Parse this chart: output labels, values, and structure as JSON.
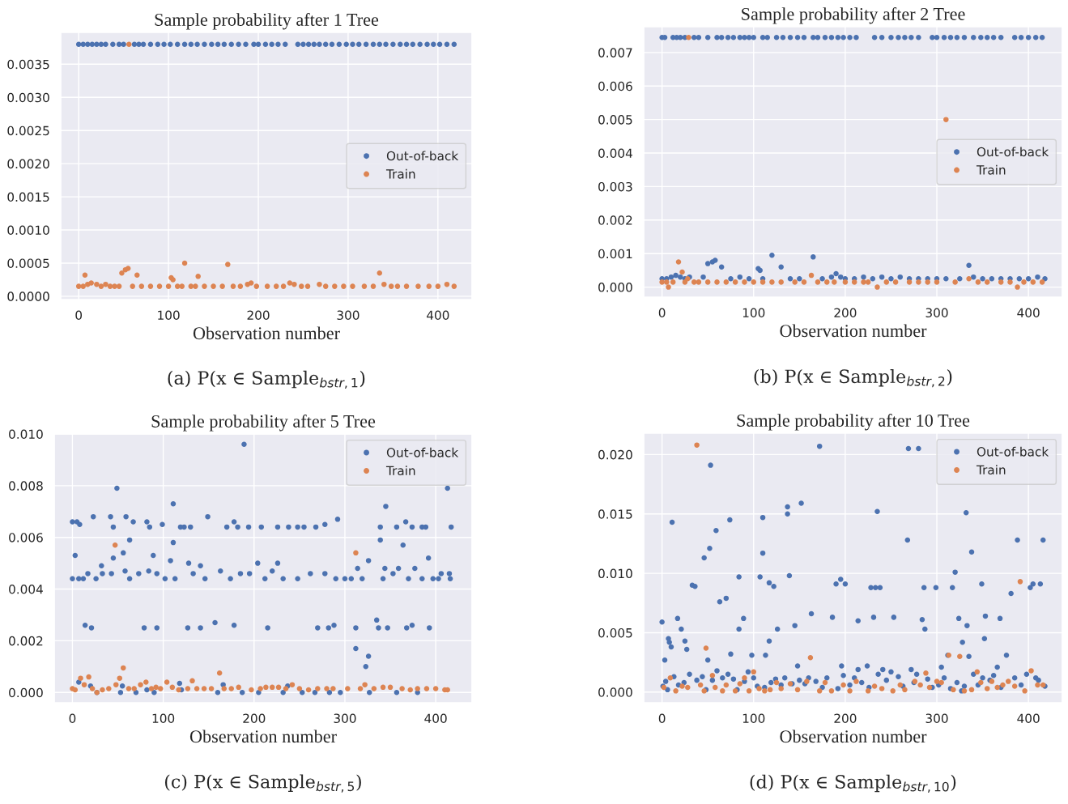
{
  "chart_data": [
    {
      "type": "scatter",
      "title": "Sample probability after 1 Tree",
      "xlabel": "Observation number",
      "annotations": [
        "(a) P(x ∈ Sample$_{bstr,1}$)"
      ],
      "xlim": [
        -20,
        438
      ],
      "ylim": [
        -5e-05,
        0.00398
      ],
      "xticks": [
        0,
        100,
        200,
        300,
        400
      ],
      "yticks": [
        {
          "value": 0,
          "label": "0.0000"
        },
        {
          "value": 0.0005,
          "label": "0.0005"
        },
        {
          "value": 0.001,
          "label": "0.0010"
        },
        {
          "value": 0.0015,
          "label": "0.0015"
        },
        {
          "value": 0.002,
          "label": "0.0020"
        },
        {
          "value": 0.0025,
          "label": "0.0025"
        },
        {
          "value": 0.003,
          "label": "0.0030"
        },
        {
          "value": 0.0035,
          "label": "0.0035"
        }
      ],
      "grid": true,
      "legend": "center right",
      "marker": "circle",
      "series": [
        {
          "name": "Out-of-back",
          "color": "#4c72b0",
          "x": [
            0,
            5,
            10,
            15,
            20,
            25,
            30,
            38,
            45,
            50,
            62,
            67,
            72,
            80,
            88,
            95,
            102,
            110,
            118,
            125,
            132,
            140,
            148,
            155,
            162,
            170,
            178,
            186,
            195,
            200,
            208,
            215,
            222,
            230,
            244,
            250,
            256,
            262,
            268,
            275,
            282,
            290,
            298,
            305,
            312,
            320,
            328,
            335,
            342,
            350,
            358,
            365,
            372,
            380,
            388,
            395,
            402,
            410,
            418
          ],
          "values": [
            0.0038,
            0.0038,
            0.0038,
            0.0038,
            0.0038,
            0.0038,
            0.0038,
            0.0038,
            0.0038,
            0.0038,
            0.0038,
            0.0038,
            0.0038,
            0.0038,
            0.0038,
            0.0038,
            0.0038,
            0.0038,
            0.0038,
            0.0038,
            0.0038,
            0.0038,
            0.0038,
            0.0038,
            0.0038,
            0.0038,
            0.0038,
            0.0038,
            0.0038,
            0.0038,
            0.0038,
            0.0038,
            0.0038,
            0.0038,
            0.0038,
            0.0038,
            0.0038,
            0.0038,
            0.0038,
            0.0038,
            0.0038,
            0.0038,
            0.0038,
            0.0038,
            0.0038,
            0.0038,
            0.0038,
            0.0038,
            0.0038,
            0.0038,
            0.0038,
            0.0038,
            0.0038,
            0.0038,
            0.0038,
            0.0038,
            0.0038,
            0.0038,
            0.0038
          ]
        },
        {
          "name": "Train",
          "color": "#dd8452",
          "x": [
            0,
            5,
            7,
            10,
            14,
            20,
            25,
            30,
            35,
            40,
            45,
            48,
            52,
            55,
            56,
            60,
            65,
            70,
            80,
            90,
            100,
            103,
            105,
            110,
            115,
            118,
            125,
            130,
            133,
            140,
            150,
            160,
            166,
            172,
            180,
            188,
            192,
            198,
            210,
            220,
            228,
            235,
            240,
            248,
            255,
            268,
            275,
            285,
            295,
            305,
            318,
            328,
            335,
            340,
            348,
            355,
            365,
            378,
            390,
            400,
            410,
            418
          ],
          "values": [
            0.00015,
            0.00015,
            0.00032,
            0.00018,
            0.0002,
            0.00018,
            0.00015,
            0.00018,
            0.00015,
            0.00015,
            0.00015,
            0.00035,
            0.0004,
            0.00042,
            0.0038,
            0.00015,
            0.00032,
            0.00015,
            0.00015,
            0.00015,
            0.00015,
            0.00028,
            0.00025,
            0.00015,
            0.00015,
            0.0005,
            0.00015,
            0.00015,
            0.0003,
            0.00015,
            0.00015,
            0.00015,
            0.00048,
            0.00015,
            0.00015,
            0.00018,
            0.0002,
            0.00015,
            0.00015,
            0.00015,
            0.00015,
            0.0002,
            0.00018,
            0.00015,
            0.00015,
            0.00018,
            0.00015,
            0.00015,
            0.00015,
            0.00015,
            0.00015,
            0.00015,
            0.00035,
            0.00018,
            0.00015,
            0.00015,
            0.00015,
            0.00015,
            0.00015,
            0.00015,
            0.00018,
            0.00015
          ]
        }
      ]
    },
    {
      "type": "scatter",
      "title": "Sample probability after 2 Tree",
      "xlabel": "Observation number",
      "annotations": [
        "(b) P(x ∈ Sample$_{bstr,2}$)"
      ],
      "xlim": [
        -20,
        437
      ],
      "ylim": [
        -0.0003,
        0.00777
      ],
      "xticks": [
        0,
        100,
        200,
        300,
        400
      ],
      "yticks": [
        {
          "value": 0,
          "label": "0.000"
        },
        {
          "value": 0.001,
          "label": "0.001"
        },
        {
          "value": 0.002,
          "label": "0.002"
        },
        {
          "value": 0.003,
          "label": "0.003"
        },
        {
          "value": 0.004,
          "label": "0.004"
        },
        {
          "value": 0.005,
          "label": "0.005"
        },
        {
          "value": 0.006,
          "label": "0.006"
        },
        {
          "value": 0.007,
          "label": "0.007"
        }
      ],
      "grid": true,
      "legend": "center right",
      "marker": "circle",
      "series": [
        {
          "name": "Out-of-back",
          "color": "#4c72b0",
          "x": [
            0,
            3,
            12,
            16,
            20,
            25,
            35,
            40,
            50,
            60,
            65,
            72,
            78,
            85,
            90,
            95,
            100,
            110,
            115,
            125,
            132,
            140,
            148,
            155,
            165,
            170,
            178,
            185,
            192,
            198,
            205,
            212,
            232,
            240,
            250,
            258,
            265,
            272,
            280,
            295,
            300,
            308,
            315,
            322,
            330,
            340,
            348,
            355,
            362,
            370,
            385,
            392,
            400,
            408,
            415,
            0,
            5,
            10,
            15,
            20,
            25,
            30,
            45,
            50,
            55,
            58,
            65,
            75,
            85,
            95,
            105,
            107,
            110,
            120,
            130,
            140,
            150,
            165,
            175,
            185,
            190,
            195,
            200,
            210,
            220,
            230,
            240,
            250,
            260,
            270,
            280,
            290,
            300,
            310,
            325,
            335,
            340,
            350,
            360,
            370,
            380,
            390,
            400,
            410,
            418
          ],
          "values": [
            0.00745,
            0.00745,
            0.00745,
            0.00745,
            0.00745,
            0.00745,
            0.00745,
            0.00745,
            0.00745,
            0.00745,
            0.00745,
            0.00745,
            0.00745,
            0.00745,
            0.00745,
            0.00745,
            0.00745,
            0.00745,
            0.00745,
            0.00745,
            0.00745,
            0.00745,
            0.00745,
            0.00745,
            0.00745,
            0.00745,
            0.00745,
            0.00745,
            0.00745,
            0.00745,
            0.00745,
            0.00745,
            0.00745,
            0.00745,
            0.00745,
            0.00745,
            0.00745,
            0.00745,
            0.00745,
            0.00745,
            0.00745,
            0.00745,
            0.00745,
            0.00745,
            0.00745,
            0.00745,
            0.00745,
            0.00745,
            0.00745,
            0.00745,
            0.00745,
            0.00745,
            0.00745,
            0.00745,
            0.00745,
            0.00025,
            0.00025,
            0.0003,
            0.00035,
            0.0003,
            0.00025,
            0.0003,
            0.0003,
            0.0007,
            0.00075,
            0.0008,
            0.0006,
            0.00025,
            0.0003,
            0.00025,
            0.00055,
            0.0005,
            0.00025,
            0.00095,
            0.0006,
            0.00025,
            0.00025,
            0.0009,
            0.00025,
            0.0003,
            0.0004,
            0.0003,
            0.00025,
            0.00025,
            0.0003,
            0.00025,
            0.0003,
            0.00025,
            0.0003,
            0.00025,
            0.00025,
            0.00025,
            0.00025,
            0.00025,
            0.00025,
            0.00065,
            0.0003,
            0.00025,
            0.00025,
            0.00025,
            0.00025,
            0.00025,
            0.00025,
            0.0003,
            0.00025
          ]
        },
        {
          "name": "Train",
          "color": "#dd8452",
          "x": [
            0,
            5,
            7,
            12,
            18,
            22,
            25,
            28,
            29,
            35,
            40,
            50,
            60,
            70,
            80,
            90,
            100,
            110,
            120,
            130,
            145,
            155,
            163,
            170,
            180,
            188,
            200,
            210,
            220,
            225,
            235,
            245,
            255,
            270,
            280,
            290,
            300,
            310,
            320,
            335,
            345,
            355,
            370,
            380,
            388,
            395,
            405,
            415
          ],
          "values": [
            0.00015,
            0.00015,
            0.0,
            0.00015,
            0.00075,
            0.00045,
            0.00015,
            0.00025,
            0.00745,
            0.00015,
            0.00015,
            0.00015,
            0.00015,
            0.00015,
            0.00015,
            0.00015,
            0.00015,
            0.00015,
            0.00015,
            0.00015,
            0.00015,
            0.00015,
            0.00035,
            0.00015,
            0.00015,
            0.00015,
            0.00015,
            0.00015,
            0.00015,
            0.00015,
            0.0,
            0.00015,
            0.00015,
            0.00015,
            0.00015,
            0.00015,
            0.00015,
            0.005,
            0.00015,
            0.00025,
            0.00015,
            0.00015,
            0.00015,
            0.00015,
            0.0,
            0.00015,
            0.00015,
            0.00015
          ]
        }
      ]
    },
    {
      "type": "scatter",
      "title": "Sample probability after 5 Tree",
      "xlabel": "Observation number",
      "annotations": [
        "(c) P(x ∈ Sample$_{bstr,5}$)"
      ],
      "xlim": [
        -20,
        440
      ],
      "ylim": [
        -0.0004,
        0.01
      ],
      "xticks": [
        0,
        100,
        200,
        300,
        400
      ],
      "yticks": [
        {
          "value": 0,
          "label": "0.000"
        },
        {
          "value": 0.002,
          "label": "0.002"
        },
        {
          "value": 0.004,
          "label": "0.004"
        },
        {
          "value": 0.006,
          "label": "0.006"
        },
        {
          "value": 0.008,
          "label": "0.008"
        },
        {
          "value": 0.01,
          "label": "0.010"
        }
      ],
      "grid": true,
      "legend": "upper right",
      "marker": "circle",
      "series": [
        {
          "name": "Out-of-back",
          "color": "#4c72b0",
          "x": [
            0,
            5,
            8,
            3,
            0,
            7,
            12,
            14,
            21,
            17,
            23,
            26,
            32,
            33,
            42,
            43,
            45,
            45,
            49,
            56,
            59,
            58,
            63,
            63,
            67,
            73,
            79,
            82,
            85,
            84,
            89,
            93,
            93,
            99,
            102,
            108,
            111,
            111,
            113,
            119,
            123,
            127,
            128,
            130,
            133,
            141,
            141,
            149,
            146,
            157,
            163,
            170,
            174,
            178,
            178,
            182,
            185,
            189,
            194,
            195,
            204,
            208,
            212,
            215,
            220,
            226,
            226,
            232,
            238,
            248,
            248,
            255,
            262,
            268,
            270,
            278,
            278,
            282,
            288,
            292,
            290,
            300,
            307,
            312,
            312,
            314,
            319,
            323,
            326,
            326,
            335,
            337,
            339,
            339,
            342,
            345,
            344,
            347,
            353,
            357,
            359,
            364,
            367,
            368,
            370,
            374,
            374,
            377,
            385,
            385,
            389,
            392,
            393,
            397,
            403,
            406,
            413,
            415,
            416,
            417,
            7,
            20,
            27,
            53,
            55,
            70,
            82,
            90,
            118,
            120,
            160,
            166,
            187,
            205,
            232,
            237,
            253,
            267,
            283,
            295,
            327,
            357,
            380
          ],
          "values": [
            0.0066,
            0.0066,
            0.0065,
            0.0053,
            0.0044,
            0.0044,
            0.0044,
            0.0026,
            0.0025,
            0.0046,
            0.0068,
            0.0044,
            0.0049,
            0.0046,
            0.0068,
            0.0046,
            0.0064,
            0.0052,
            0.0079,
            0.0054,
            0.0068,
            0.0047,
            0.0059,
            0.0044,
            0.0066,
            0.0046,
            0.0025,
            0.0066,
            0.0064,
            0.0047,
            0.0053,
            0.0025,
            0.0046,
            0.0065,
            0.0044,
            0.0051,
            0.0073,
            0.0058,
            0.0044,
            0.0064,
            0.0064,
            0.0025,
            0.005,
            0.0064,
            0.0046,
            0.0049,
            0.0025,
            0.0068,
            0.0044,
            0.0027,
            0.0047,
            0.0064,
            0.0044,
            0.0026,
            0.0066,
            0.0064,
            0.0046,
            0.0096,
            0.0064,
            0.0046,
            0.005,
            0.0064,
            0.0044,
            0.0025,
            0.0047,
            0.0064,
            0.005,
            0.0044,
            0.0064,
            0.0064,
            0.0044,
            0.0064,
            0.0046,
            0.0064,
            0.0025,
            0.0065,
            0.0046,
            0.0025,
            0.0026,
            0.0067,
            0.0044,
            0.0044,
            0.0044,
            0.0025,
            0.0017,
            0.0048,
            0.0044,
            0.001,
            0.0014,
            0.0051,
            0.0028,
            0.0025,
            0.0064,
            0.0059,
            0.0044,
            0.0072,
            0.0048,
            0.0025,
            0.0046,
            0.0064,
            0.0048,
            0.0057,
            0.0066,
            0.0025,
            0.0044,
            0.0064,
            0.0026,
            0.0048,
            0.0064,
            0.0044,
            0.0064,
            0.0052,
            0.0025,
            0.0044,
            0.0044,
            0.0046,
            0.0079,
            0.0046,
            0.0044,
            0.0064,
            0.0004,
            0.00025,
            0.0,
            0.0,
            0.00025,
            0.0,
            0.0001,
            0.0,
            0.00035,
            0.0001,
            0.0,
            0.0003,
            0.0,
            0.0,
            0.0,
            0.00025,
            0.0,
            0.0,
            0.0,
            0.0,
            0.0,
            0.0,
            0.0
          ]
        },
        {
          "name": "Train",
          "color": "#dd8452",
          "x": [
            0,
            3,
            9,
            13,
            18,
            22,
            27,
            33,
            40,
            47,
            48,
            52,
            56,
            62,
            68,
            75,
            81,
            87,
            92,
            97,
            104,
            110,
            117,
            127,
            132,
            137,
            145,
            153,
            162,
            167,
            175,
            183,
            197,
            207,
            213,
            220,
            227,
            235,
            242,
            250,
            260,
            270,
            280,
            287,
            303,
            312,
            317,
            322,
            332,
            342,
            350,
            363,
            372,
            380,
            390,
            400,
            410,
            413
          ],
          "values": [
            0.00015,
            0.0001,
            0.00055,
            0.0003,
            0.0006,
            0.00015,
            0.0,
            0.0001,
            0.00015,
            0.0057,
            0.0003,
            0.00055,
            0.00095,
            0.00015,
            0.00015,
            0.0003,
            0.0004,
            0.00015,
            0.0002,
            0.00015,
            0.0004,
            0.0002,
            0.0001,
            0.00015,
            0.00045,
            0.00015,
            0.00015,
            0.00015,
            0.00075,
            0.00015,
            0.00015,
            0.0002,
            0.0001,
            0.00015,
            0.0002,
            0.0002,
            0.0002,
            0.00015,
            0.0003,
            0.00015,
            0.0001,
            0.00015,
            0.00015,
            0.00015,
            0.00015,
            0.0054,
            0.00015,
            0.0003,
            0.00015,
            0.0002,
            0.0002,
            0.00015,
            0.0001,
            0.00015,
            0.00015,
            0.00015,
            0.0001,
            0.0001
          ]
        }
      ]
    },
    {
      "type": "scatter",
      "title": "Sample probability after 10 Tree",
      "xlabel": "Observation number",
      "annotations": [
        "(d) P(x ∈ Sample$_{bstr,10}$)"
      ],
      "xlim": [
        -20,
        437
      ],
      "ylim": [
        -0.0009,
        0.0218
      ],
      "xticks": [
        0,
        100,
        200,
        300,
        400
      ],
      "yticks": [
        {
          "value": 0,
          "label": "0.000"
        },
        {
          "value": 0.005,
          "label": "0.005"
        },
        {
          "value": 0.01,
          "label": "0.010"
        },
        {
          "value": 0.015,
          "label": "0.015"
        },
        {
          "value": 0.02,
          "label": "0.020"
        }
      ],
      "grid": true,
      "legend": "upper right",
      "marker": "circle",
      "series": [
        {
          "name": "Out-of-back",
          "color": "#4c72b0",
          "x": [
            0,
            3,
            7,
            8,
            10,
            11,
            17,
            21,
            25,
            27,
            33,
            36,
            46,
            50,
            52,
            53,
            59,
            63,
            70,
            74,
            75,
            84,
            84,
            89,
            98,
            107,
            110,
            110,
            113,
            117,
            122,
            117,
            126,
            137,
            137,
            139,
            145,
            152,
            148,
            163,
            172,
            186,
            190,
            195,
            200,
            196,
            214,
            214,
            224,
            228,
            233,
            231,
            235,
            238,
            241,
            250,
            253,
            268,
            269,
            272,
            280,
            284,
            286,
            287,
            299,
            305,
            312,
            317,
            320,
            324,
            328,
            332,
            333,
            338,
            335,
            349,
            352,
            353,
            366,
            369,
            376,
            381,
            388,
            402,
            405,
            413,
            416,
            1,
            4,
            6,
            13,
            18,
            24,
            30,
            38,
            44,
            48,
            55,
            60,
            66,
            72,
            78,
            82,
            90,
            94,
            100,
            104,
            112,
            119,
            124,
            130,
            134,
            142,
            150,
            156,
            160,
            168,
            175,
            180,
            192,
            198,
            205,
            210,
            218,
            226,
            236,
            245,
            258,
            263,
            275,
            278,
            290,
            295,
            302,
            308,
            315,
            322,
            327,
            330,
            340,
            345,
            350,
            358,
            362,
            370,
            385,
            392,
            398,
            408,
            411,
            418
          ],
          "values": [
            0.0059,
            0.0027,
            0.0045,
            0.0042,
            0.0038,
            0.0143,
            0.0062,
            0.0053,
            0.0043,
            0.0036,
            0.009,
            0.0089,
            0.0113,
            0.0027,
            0.0121,
            0.0191,
            0.0136,
            0.0076,
            0.0079,
            0.0145,
            0.0032,
            0.0097,
            0.0053,
            0.0062,
            0.0031,
            0.0097,
            0.0147,
            0.0117,
            0.0031,
            0.0092,
            0.0089,
            0.0043,
            0.0053,
            0.0156,
            0.015,
            0.0098,
            0.0056,
            0.0159,
            0.0022,
            0.0066,
            0.0207,
            0.0063,
            0.0091,
            0.0095,
            0.0091,
            0.0022,
            0.0019,
            0.006,
            0.0022,
            0.0088,
            0.0088,
            0.0063,
            0.0152,
            0.0088,
            0.0019,
            0.0017,
            0.0063,
            0.0128,
            0.0205,
            0.0019,
            0.0205,
            0.0061,
            0.0088,
            0.0053,
            0.0088,
            0.0021,
            0.0031,
            0.0088,
            0.0101,
            0.0062,
            0.0042,
            0.0151,
            0.0056,
            0.0118,
            0.003,
            0.0091,
            0.0045,
            0.0064,
            0.0021,
            0.0062,
            0.0031,
            0.0083,
            0.0128,
            0.0088,
            0.0091,
            0.0091,
            0.0128,
            0.0005,
            0.0009,
            0.0002,
            0.0013,
            0.0006,
            0.0008,
            0.0015,
            0.001,
            0.0013,
            0.0002,
            0.001,
            0.0018,
            0.0012,
            0.0015,
            0.0011,
            0.0002,
            0.0009,
            0.0017,
            0.0012,
            0.0005,
            0.0004,
            0.0008,
            0.0011,
            0.0006,
            0.0012,
            0.0007,
            0.001,
            0.0007,
            0.0012,
            0.0009,
            0.0004,
            0.0012,
            0.0003,
            0.0014,
            0.0006,
            0.0012,
            0.0008,
            0.0004,
            0.0015,
            0.001,
            0.0013,
            0.0005,
            0.0008,
            0.0015,
            0.0011,
            0.0004,
            0.0006,
            0.0012,
            0.0003,
            0.0008,
            0.0001,
            0.0005,
            0.0015,
            0.0006,
            0.0012,
            0.001,
            0.0014,
            0.0004,
            0.0012,
            0.0006,
            0.0015,
            0.0012,
            0.001,
            0.0005
          ]
        },
        {
          "name": "Train",
          "color": "#dd8452",
          "x": [
            38,
            48,
            55,
            162,
            313,
            325,
            391,
            403,
            344,
            288,
            90,
            100,
            2,
            9,
            15,
            22,
            28,
            42,
            46,
            58,
            66,
            70,
            80,
            85,
            95,
            106,
            112,
            118,
            125,
            130,
            140,
            148,
            158,
            172,
            178,
            185,
            198,
            205,
            212,
            225,
            232,
            240,
            252,
            260,
            265,
            276,
            282,
            292,
            300,
            305,
            318,
            330,
            338,
            348,
            355,
            360,
            366,
            372,
            378,
            385,
            396,
            410,
            416
          ],
          "values": [
            0.0208,
            0.0037,
            0.0014,
            0.0029,
            0.0031,
            0.003,
            0.0093,
            0.0018,
            0.0017,
            0.0016,
            0.0012,
            0.0017,
            0.0004,
            0.0012,
            0.0001,
            0.0005,
            0.0004,
            0.0006,
            0.0001,
            0.0004,
            0.0001,
            0.0006,
            0.0001,
            0.0007,
            0.0001,
            0.0003,
            0.0001,
            0.0002,
            0.0008,
            0.0003,
            0.0007,
            0.0002,
            0.0009,
            0.0001,
            0.0008,
            0.0001,
            0.0006,
            0.0001,
            0.0009,
            0.0001,
            0.0005,
            0.0003,
            0.0001,
            0.0006,
            0.0002,
            0.0009,
            0.0006,
            0.0004,
            0.0009,
            0.0008,
            0.0002,
            0.0001,
            0.0002,
            0.0008,
            0.0003,
            0.0009,
            0.0004,
            0.0006,
            0.0009,
            0.0005,
            0.0001,
            0.0006,
            0.0006
          ]
        }
      ]
    }
  ]
}
